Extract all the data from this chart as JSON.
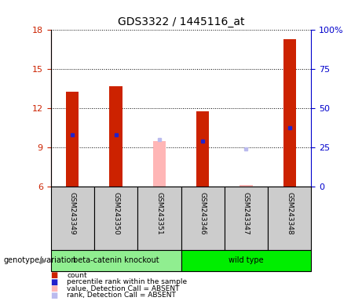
{
  "title": "GDS3322 / 1445116_at",
  "samples": [
    "GSM243349",
    "GSM243350",
    "GSM243351",
    "GSM243346",
    "GSM243347",
    "GSM243348"
  ],
  "count_values": [
    13.3,
    13.7,
    9.5,
    11.8,
    6.15,
    17.3
  ],
  "percentile_values": [
    10.0,
    10.0,
    9.6,
    9.5,
    8.9,
    10.5
  ],
  "absent_flags": [
    false,
    false,
    true,
    false,
    true,
    false
  ],
  "group_sizes": [
    3,
    3
  ],
  "group_colors": [
    "#90EE90",
    "#00EE00"
  ],
  "group_labels": [
    "beta-catenin knockout",
    "wild type"
  ],
  "ylim_left": [
    6,
    18
  ],
  "ylim_right": [
    0,
    100
  ],
  "yticks_left": [
    6,
    9,
    12,
    15,
    18
  ],
  "yticks_right": [
    0,
    25,
    50,
    75,
    100
  ],
  "ytick_right_labels": [
    "0",
    "25",
    "50",
    "75",
    "100%"
  ],
  "bar_width": 0.3,
  "color_red": "#CC2200",
  "color_pink": "#FFB6B6",
  "color_blue": "#2222CC",
  "color_lightblue": "#BBBBEE",
  "color_axis_left": "#CC2200",
  "color_axis_right": "#0000CC",
  "plot_bg": "#FFFFFF",
  "sample_bg": "#CCCCCC",
  "legend_items": [
    {
      "color": "#CC2200",
      "label": "count"
    },
    {
      "color": "#2222CC",
      "label": "percentile rank within the sample"
    },
    {
      "color": "#FFB6B6",
      "label": "value, Detection Call = ABSENT"
    },
    {
      "color": "#BBBBEE",
      "label": "rank, Detection Call = ABSENT"
    }
  ],
  "genotype_label": "genotype/variation"
}
